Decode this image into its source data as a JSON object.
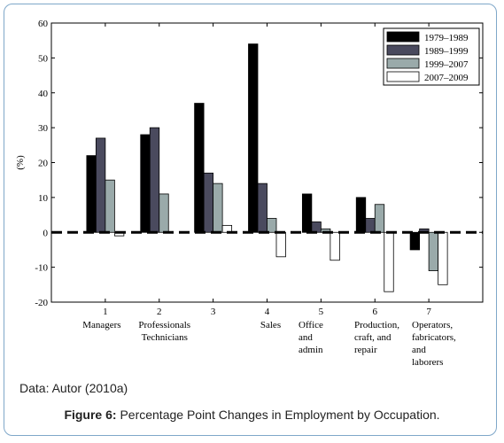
{
  "source_note": "Data: Autor (2010a)",
  "caption": {
    "label": "Figure 6:",
    "text": "Percentage Point Changes in Employment by Occupation."
  },
  "chart_data": {
    "type": "bar",
    "ylabel": "(%)",
    "ylim": [
      -20,
      60
    ],
    "yticks": [
      60,
      50,
      40,
      30,
      20,
      10,
      0,
      -10,
      -20
    ],
    "xticks": [
      "1",
      "2",
      "3",
      "4",
      "5",
      "6",
      "7"
    ],
    "categories": [
      [
        "Managers"
      ],
      [
        "Professionals",
        "Technicians"
      ],
      [],
      [
        "Sales"
      ],
      [
        "Office",
        "and",
        "admin"
      ],
      [
        "Production,",
        "craft, and",
        "repair"
      ],
      [
        "Operators,",
        "fabricators,",
        "and",
        "laborers"
      ]
    ],
    "legend_position": "top-right",
    "zero_line": "dashed",
    "series": [
      {
        "name": "1979–1989",
        "color": "#000000",
        "values": [
          22,
          28,
          37,
          54,
          11,
          10,
          -5
        ]
      },
      {
        "name": "1989–1999",
        "color": "#4a4a5e",
        "values": [
          27,
          30,
          17,
          14,
          3,
          4,
          1
        ]
      },
      {
        "name": "1999–2007",
        "color": "#9aaaaa",
        "values": [
          15,
          11,
          14,
          4,
          1,
          8,
          -11
        ]
      },
      {
        "name": "2007–2009",
        "color": "#ffffff",
        "values": [
          -1,
          0,
          2,
          -7,
          -8,
          -17,
          -15
        ]
      }
    ]
  }
}
